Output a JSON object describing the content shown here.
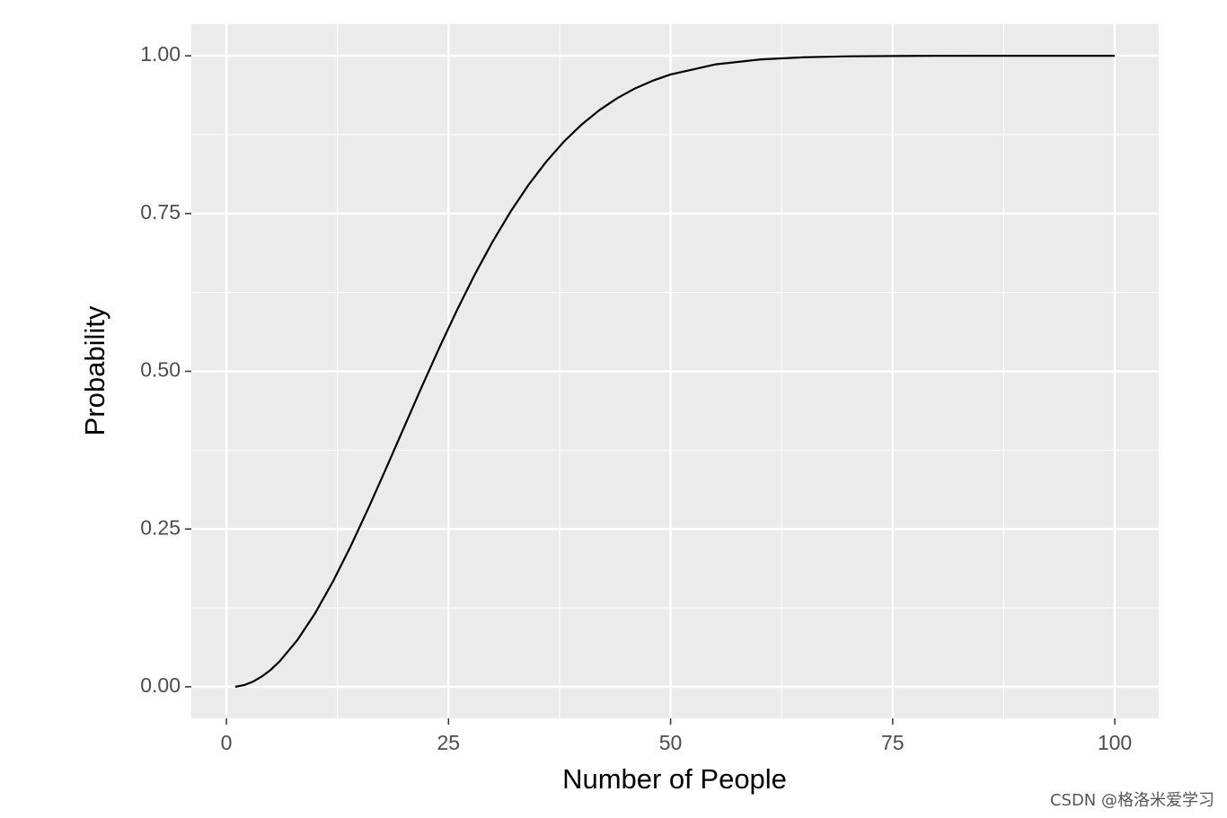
{
  "chart_data": {
    "type": "line",
    "x_label": "Number of People",
    "y_label": "Probability",
    "x": [
      1,
      2,
      3,
      4,
      5,
      6,
      8,
      10,
      12,
      14,
      16,
      18,
      20,
      22,
      24,
      26,
      28,
      30,
      32,
      34,
      36,
      38,
      40,
      42,
      44,
      46,
      48,
      50,
      55,
      60,
      65,
      70,
      75,
      80,
      90,
      100
    ],
    "series": [
      {
        "color": "#000000",
        "values": [
          0,
          0.0027,
          0.0082,
          0.0164,
          0.0271,
          0.0405,
          0.0743,
          0.1169,
          0.167,
          0.2231,
          0.2836,
          0.3469,
          0.4114,
          0.4757,
          0.5383,
          0.5982,
          0.6545,
          0.7063,
          0.7533,
          0.7953,
          0.8322,
          0.8641,
          0.8912,
          0.914,
          0.9329,
          0.9483,
          0.9606,
          0.9704,
          0.9863,
          0.9941,
          0.9977,
          0.9992,
          0.9997,
          0.9999,
          1,
          1
        ]
      }
    ],
    "xlim": [
      -3.95,
      104.95
    ],
    "ylim": [
      -0.05,
      1.05
    ],
    "xticks": [
      0,
      25,
      50,
      75,
      100
    ],
    "yticks": [
      {
        "value": 0,
        "label": "0.00"
      },
      {
        "value": 0.25,
        "label": "0.25"
      },
      {
        "value": 0.5,
        "label": "0.50"
      },
      {
        "value": 0.75,
        "label": "0.75"
      },
      {
        "value": 1,
        "label": "1.00"
      }
    ],
    "x_minor_ticks": [
      12.5,
      37.5,
      62.5,
      87.5
    ],
    "y_minor_ticks": [
      0.125,
      0.375,
      0.625,
      0.875
    ],
    "grid": true,
    "panel_color": "#ebebeb"
  },
  "watermark": "CSDN @格洛米爱学习"
}
